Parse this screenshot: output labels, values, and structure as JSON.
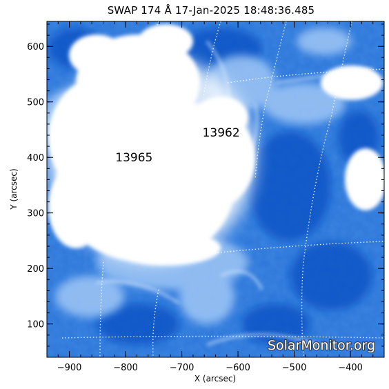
{
  "title": "SWAP 174 Å 17-Jan-2025 18:48:36.485",
  "x_axis": {
    "label": "X (arcsec)",
    "range": [
      -940,
      -340
    ],
    "ticks": [
      -900,
      -800,
      -700,
      -600,
      -500,
      -400
    ],
    "tick_labels": [
      "−900",
      "−800",
      "−700",
      "−600",
      "−500",
      "−400"
    ]
  },
  "y_axis": {
    "label": "Y (arcsec)",
    "range": [
      40,
      645
    ],
    "ticks": [
      100,
      200,
      300,
      400,
      500,
      600
    ],
    "tick_labels": [
      "100",
      "200",
      "300",
      "400",
      "500",
      "600"
    ]
  },
  "active_regions": [
    {
      "label": "13965",
      "x": -785,
      "y": 400
    },
    {
      "label": "13962",
      "x": -630,
      "y": 445
    }
  ],
  "watermark": "SolarMonitor.org",
  "colors": {
    "deep_blue": "#0a57c8",
    "mid_blue": "#4f93e6",
    "light_blue": "#a9cdf6",
    "saturated": "#ffffff"
  }
}
